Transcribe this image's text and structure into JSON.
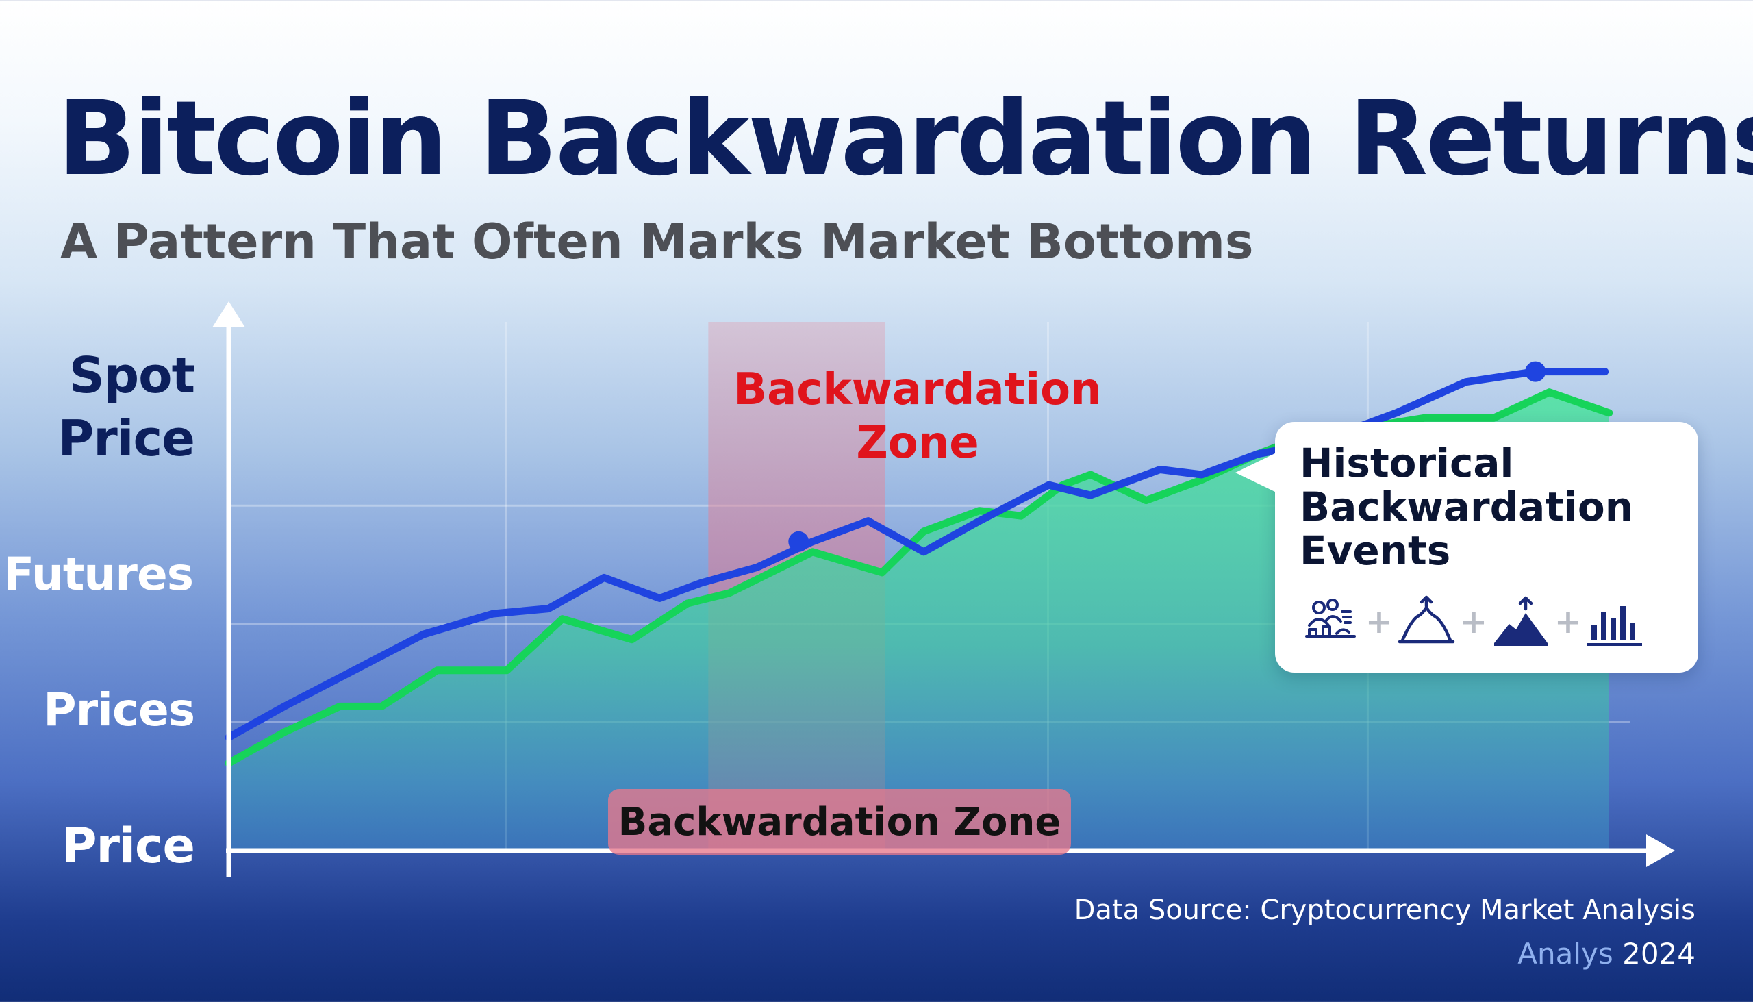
{
  "chart_data": {
    "type": "line",
    "title": "Bitcoin Backwardation Returns",
    "subtitle": "A Pattern That Often Marks Market Bottoms",
    "ylabels": [
      "Spot\nPrice",
      "Futures",
      "Prices",
      "Price"
    ],
    "xlim": [
      0,
      100
    ],
    "ylim": [
      0,
      100
    ],
    "grid": true,
    "series": [
      {
        "name": "",
        "color": "#1f44e0",
        "style": "line",
        "x": [
          0,
          4,
          9,
          14,
          19,
          23,
          27,
          31,
          34,
          38,
          42,
          46,
          50,
          54,
          59,
          62,
          67,
          70,
          74,
          76,
          79,
          84,
          89,
          94,
          99
        ],
        "y": [
          22,
          28,
          35,
          42,
          46,
          47,
          53,
          49,
          52,
          55,
          60,
          64,
          58,
          64,
          71,
          69,
          74,
          73,
          77,
          78,
          80,
          85,
          91,
          93,
          93
        ]
      },
      {
        "name": "",
        "color": "#16d45a",
        "style": "area",
        "x": [
          0,
          4,
          8,
          11,
          15,
          18,
          20,
          24,
          29,
          33,
          36,
          42,
          47,
          50,
          54,
          57,
          60,
          62,
          66,
          70,
          74,
          76,
          79,
          86,
          91,
          95,
          99.3
        ],
        "y": [
          17,
          23,
          28,
          28,
          35,
          35,
          35,
          45,
          41,
          48,
          50,
          58,
          54,
          62,
          66,
          65,
          71,
          73,
          68,
          72,
          77,
          79,
          81,
          84,
          84,
          89,
          85
        ]
      }
    ],
    "markers": [
      {
        "series": 0,
        "x": 41,
        "y": 60
      },
      {
        "series": 0,
        "x": 94,
        "y": 93
      }
    ],
    "zones": [
      {
        "label": "Backwardation\nZone",
        "from": 34.5,
        "to": 47.2,
        "color": "#e88a9a"
      }
    ],
    "pill_label": "Backwardation Zone",
    "callout": {
      "title": "Historical\nBackwardation\nEvents",
      "icons": [
        "people-chart-icon",
        "mountain-peak-icon",
        "mountain-arrow-icon",
        "bar-chart-icon"
      ],
      "separator": "+"
    },
    "source": "Data Source: Cryptocurrency Market Analysis",
    "year_prefix": "Analys",
    "year": "2024"
  }
}
